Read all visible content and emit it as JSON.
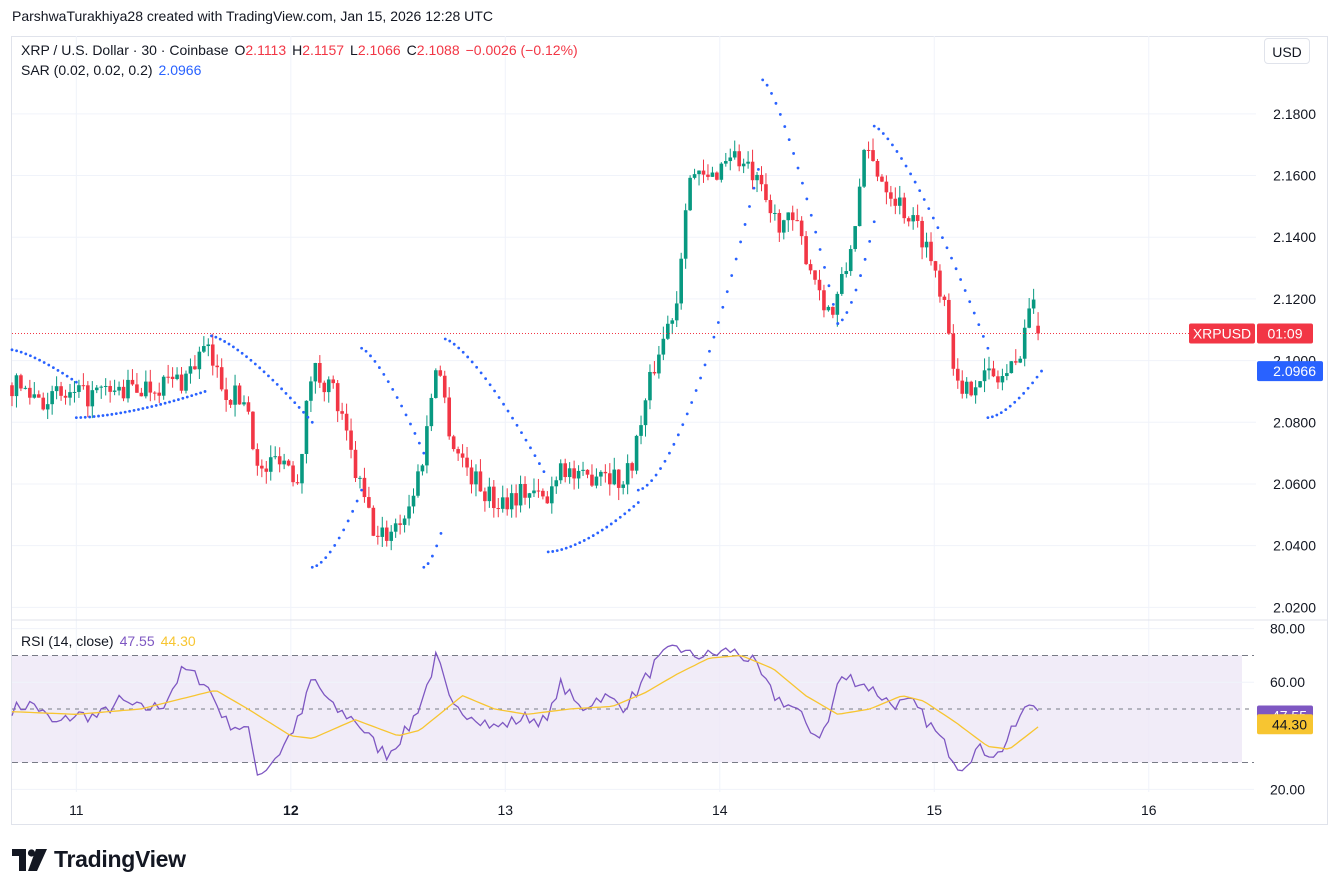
{
  "attribution": "ParshwaTurakhiya28 created with TradingView.com, Jan 15, 2026 12:28 UTC",
  "legend": {
    "symbol": "XRP / U.S. Dollar · 30 · Coinbase",
    "o_label": "O",
    "o_value": "2.1113",
    "h_label": "H",
    "h_value": "2.1157",
    "l_label": "L",
    "l_value": "2.1066",
    "c_label": "C",
    "c_value": "2.1088",
    "change": "−0.0026 (−0.12%)",
    "sar_label": "SAR (0.02, 0.02, 0.2)",
    "sar_value": "2.0966",
    "rsi_label": "RSI (14, close)",
    "rsi_value": "47.55",
    "rsi_ma_value": "44.30"
  },
  "currency": "USD",
  "price_tag": {
    "symbol": "XRPUSD",
    "countdown": "01:09",
    "price": "2.1088"
  },
  "sar_tag": "2.0966",
  "rsi_tag": "47.55",
  "rsi_ma_tag": "44.30",
  "logo_text": "TradingView",
  "colors": {
    "up": "#089981",
    "down": "#f23645",
    "sar": "#2962ff",
    "rsi": "#7e57c2",
    "rsi_ma": "#f7c531",
    "rsi_band": "#ede7f6"
  },
  "chart_data": {
    "type": "candlestick",
    "price_ticks": [
      "2.1800",
      "2.1600",
      "2.1400",
      "2.1200",
      "2.1000",
      "2.0800",
      "2.0600",
      "2.0400",
      "2.0200"
    ],
    "price_ylim": [
      2.0185,
      2.1955
    ],
    "x_ticks": [
      "11",
      "12",
      "13",
      "14",
      "15",
      "16"
    ],
    "x_bold": "12",
    "xlim": [
      10.7,
      16.5
    ],
    "last_close": 2.1088,
    "rsi_ticks": [
      "80.00",
      "60.00",
      "20.00"
    ],
    "rsi_ylim": [
      19,
      81
    ],
    "rsi_levels": [
      70,
      50,
      30
    ],
    "price_anchors": [
      [
        10.7,
        2.092
      ],
      [
        10.85,
        2.088
      ],
      [
        11.0,
        2.088
      ],
      [
        11.2,
        2.09
      ],
      [
        11.35,
        2.092
      ],
      [
        11.5,
        2.094
      ],
      [
        11.6,
        2.104
      ],
      [
        11.7,
        2.09
      ],
      [
        11.8,
        2.086
      ],
      [
        11.85,
        2.062
      ],
      [
        11.95,
        2.07
      ],
      [
        12.03,
        2.062
      ],
      [
        12.1,
        2.098
      ],
      [
        12.2,
        2.09
      ],
      [
        12.3,
        2.064
      ],
      [
        12.4,
        2.042
      ],
      [
        12.45,
        2.044
      ],
      [
        12.55,
        2.052
      ],
      [
        12.62,
        2.07
      ],
      [
        12.68,
        2.102
      ],
      [
        12.75,
        2.074
      ],
      [
        12.85,
        2.062
      ],
      [
        12.95,
        2.054
      ],
      [
        13.1,
        2.058
      ],
      [
        13.2,
        2.054
      ],
      [
        13.25,
        2.068
      ],
      [
        13.35,
        2.06
      ],
      [
        13.45,
        2.066
      ],
      [
        13.55,
        2.06
      ],
      [
        13.6,
        2.07
      ],
      [
        13.7,
        2.1
      ],
      [
        13.8,
        2.12
      ],
      [
        13.85,
        2.16
      ],
      [
        13.95,
        2.158
      ],
      [
        14.05,
        2.168
      ],
      [
        14.15,
        2.16
      ],
      [
        14.25,
        2.146
      ],
      [
        14.35,
        2.144
      ],
      [
        14.45,
        2.126
      ],
      [
        14.52,
        2.114
      ],
      [
        14.6,
        2.132
      ],
      [
        14.68,
        2.168
      ],
      [
        14.75,
        2.16
      ],
      [
        14.85,
        2.15
      ],
      [
        14.95,
        2.14
      ],
      [
        15.05,
        2.12
      ],
      [
        15.12,
        2.086
      ],
      [
        15.2,
        2.096
      ],
      [
        15.3,
        2.094
      ],
      [
        15.38,
        2.098
      ],
      [
        15.45,
        2.12
      ],
      [
        15.5,
        2.109
      ]
    ],
    "sar_segments": [
      {
        "from": [
          10.7,
          2.1035
        ],
        "to": [
          11.0,
          2.093
        ],
        "dir": "down"
      },
      {
        "from": [
          11.0,
          2.0815
        ],
        "to": [
          11.6,
          2.09
        ],
        "dir": "up"
      },
      {
        "from": [
          11.63,
          2.108
        ],
        "to": [
          12.1,
          2.08
        ],
        "dir": "down"
      },
      {
        "from": [
          12.1,
          2.033
        ],
        "to": [
          12.33,
          2.058
        ],
        "dir": "up"
      },
      {
        "from": [
          12.33,
          2.104
        ],
        "to": [
          12.62,
          2.07
        ],
        "dir": "down"
      },
      {
        "from": [
          12.62,
          2.033
        ],
        "to": [
          12.7,
          2.044
        ],
        "dir": "up"
      },
      {
        "from": [
          12.72,
          2.107
        ],
        "to": [
          13.18,
          2.064
        ],
        "dir": "down"
      },
      {
        "from": [
          13.2,
          2.038
        ],
        "to": [
          13.62,
          2.054
        ],
        "dir": "up"
      },
      {
        "from": [
          13.62,
          2.058
        ],
        "to": [
          14.18,
          2.162
        ],
        "dir": "up"
      },
      {
        "from": [
          14.2,
          2.191
        ],
        "to": [
          14.55,
          2.112
        ],
        "dir": "down"
      },
      {
        "from": [
          14.55,
          2.112
        ],
        "to": [
          14.72,
          2.145
        ],
        "dir": "up"
      },
      {
        "from": [
          14.72,
          2.176
        ],
        "to": [
          15.25,
          2.104
        ],
        "dir": "down"
      },
      {
        "from": [
          15.25,
          2.0815
        ],
        "to": [
          15.5,
          2.0966
        ],
        "dir": "up"
      }
    ],
    "rsi_anchors": [
      [
        10.7,
        50
      ],
      [
        10.8,
        52
      ],
      [
        10.9,
        44
      ],
      [
        11.0,
        48
      ],
      [
        11.1,
        47
      ],
      [
        11.2,
        53
      ],
      [
        11.3,
        50
      ],
      [
        11.4,
        51
      ],
      [
        11.5,
        65
      ],
      [
        11.6,
        60
      ],
      [
        11.7,
        45
      ],
      [
        11.8,
        42
      ],
      [
        11.85,
        25
      ],
      [
        11.95,
        34
      ],
      [
        12.05,
        48
      ],
      [
        12.1,
        62
      ],
      [
        12.2,
        50
      ],
      [
        12.3,
        46
      ],
      [
        12.4,
        36
      ],
      [
        12.45,
        33
      ],
      [
        12.55,
        43
      ],
      [
        12.62,
        55
      ],
      [
        12.68,
        70
      ],
      [
        12.75,
        50
      ],
      [
        12.85,
        48
      ],
      [
        12.95,
        43
      ],
      [
        13.1,
        47
      ],
      [
        13.2,
        45
      ],
      [
        13.25,
        60
      ],
      [
        13.35,
        50
      ],
      [
        13.45,
        55
      ],
      [
        13.55,
        51
      ],
      [
        13.6,
        55
      ],
      [
        13.7,
        67
      ],
      [
        13.8,
        74
      ],
      [
        13.85,
        70
      ],
      [
        13.95,
        70
      ],
      [
        14.05,
        72
      ],
      [
        14.15,
        68
      ],
      [
        14.25,
        55
      ],
      [
        14.35,
        50
      ],
      [
        14.45,
        40
      ],
      [
        14.5,
        43
      ],
      [
        14.55,
        60
      ],
      [
        14.6,
        62
      ],
      [
        14.7,
        58
      ],
      [
        14.8,
        52
      ],
      [
        14.9,
        52
      ],
      [
        15.0,
        42
      ],
      [
        15.08,
        33
      ],
      [
        15.12,
        28
      ],
      [
        15.2,
        35
      ],
      [
        15.3,
        33
      ],
      [
        15.38,
        44
      ],
      [
        15.45,
        53
      ],
      [
        15.5,
        47.55
      ]
    ],
    "rsi_ma_anchors": [
      [
        10.7,
        49
      ],
      [
        11.0,
        48
      ],
      [
        11.3,
        50
      ],
      [
        11.55,
        55
      ],
      [
        11.65,
        57
      ],
      [
        11.8,
        50
      ],
      [
        12.0,
        40
      ],
      [
        12.1,
        39
      ],
      [
        12.3,
        46
      ],
      [
        12.5,
        40
      ],
      [
        12.6,
        42
      ],
      [
        12.8,
        55
      ],
      [
        12.95,
        50
      ],
      [
        13.1,
        48
      ],
      [
        13.3,
        50
      ],
      [
        13.5,
        51
      ],
      [
        13.65,
        56
      ],
      [
        13.8,
        63
      ],
      [
        13.95,
        69
      ],
      [
        14.1,
        70
      ],
      [
        14.25,
        65
      ],
      [
        14.4,
        55
      ],
      [
        14.55,
        48
      ],
      [
        14.7,
        50
      ],
      [
        14.85,
        55
      ],
      [
        14.95,
        53
      ],
      [
        15.1,
        45
      ],
      [
        15.25,
        36
      ],
      [
        15.35,
        35
      ],
      [
        15.5,
        44.3
      ]
    ]
  }
}
